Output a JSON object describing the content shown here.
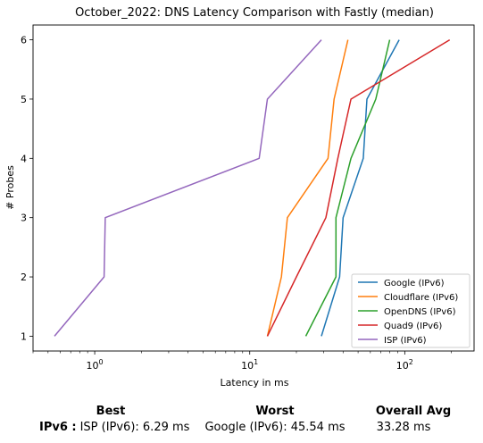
{
  "chart_data": {
    "type": "line",
    "title": "October_2022: DNS Latency Comparison with Fastly (median)",
    "xlabel": "Latency in ms",
    "ylabel": "# Probes",
    "xscale": "log",
    "xlim": [
      0.4,
      280
    ],
    "ylim": [
      0.75,
      6.25
    ],
    "xticks": [
      1,
      10,
      100
    ],
    "xtick_labels": [
      "10",
      "10",
      "10"
    ],
    "xtick_exponents": [
      "0",
      "1",
      "2"
    ],
    "yticks": [
      1,
      2,
      3,
      4,
      5,
      6
    ],
    "ytick_labels": [
      "1",
      "2",
      "3",
      "4",
      "5",
      "6"
    ],
    "grid": false,
    "legend_position": "bottom-right",
    "series": [
      {
        "name": "Google (IPv6)",
        "color": "#1f77b4",
        "points": [
          [
            29,
            1
          ],
          [
            38,
            2
          ],
          [
            40,
            3
          ],
          [
            54,
            4
          ],
          [
            57,
            5
          ],
          [
            92,
            6
          ]
        ]
      },
      {
        "name": "Cloudflare (IPv6)",
        "color": "#ff7f0e",
        "points": [
          [
            13,
            1
          ],
          [
            16,
            2
          ],
          [
            17.5,
            3
          ],
          [
            32,
            4
          ],
          [
            35,
            5
          ],
          [
            43,
            6
          ]
        ]
      },
      {
        "name": "OpenDNS (IPv6)",
        "color": "#2ca02c",
        "points": [
          [
            23,
            1
          ],
          [
            36,
            2
          ],
          [
            36,
            3
          ],
          [
            45,
            4
          ],
          [
            65,
            5
          ],
          [
            80,
            6
          ]
        ]
      },
      {
        "name": "Quad9 (IPv6)",
        "color": "#d62728",
        "points": [
          [
            13,
            1
          ],
          [
            20,
            2
          ],
          [
            31,
            3
          ],
          [
            37,
            4
          ],
          [
            45,
            5
          ],
          [
            195,
            6
          ]
        ]
      },
      {
        "name": "ISP (IPv6)",
        "color": "#9467bd",
        "points": [
          [
            0.55,
            1
          ],
          [
            1.15,
            2
          ],
          [
            1.17,
            3
          ],
          [
            11.5,
            4
          ],
          [
            13,
            5
          ],
          [
            29,
            6
          ]
        ]
      }
    ]
  },
  "summary": {
    "best_header": "Best",
    "worst_header": "Worst",
    "avg_header": "Overall Avg",
    "row_label": "IPv6 :",
    "best_value": "ISP (IPv6): 6.29 ms",
    "worst_value": "Google (IPv6): 45.54 ms",
    "avg_value": "33.28 ms"
  }
}
